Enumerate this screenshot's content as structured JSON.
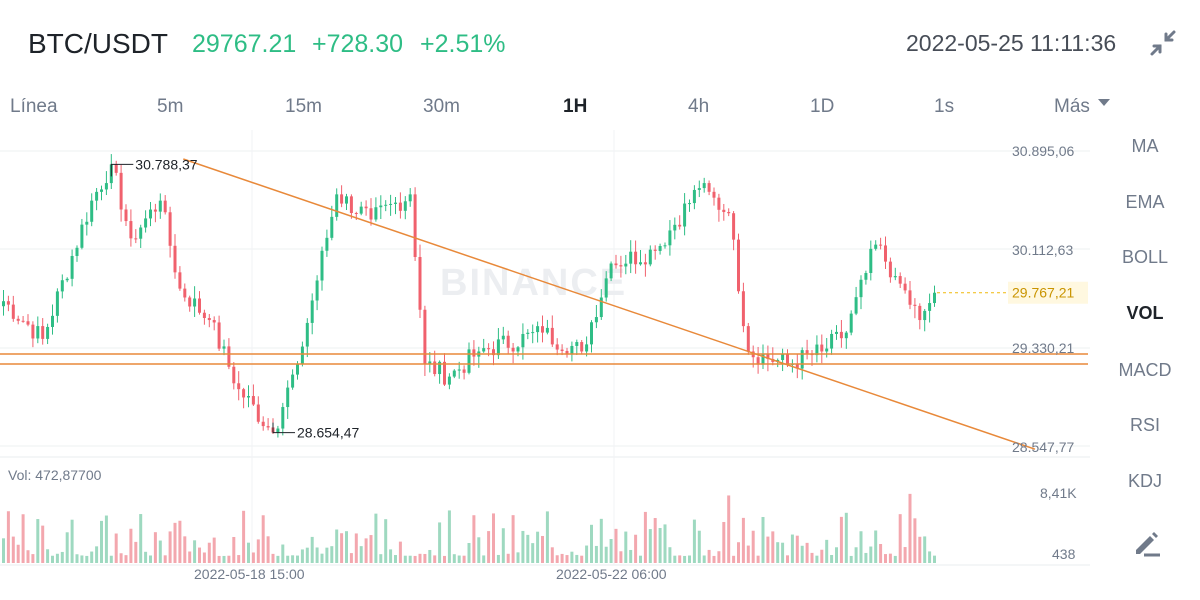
{
  "header": {
    "pair": "BTC/USDT",
    "last_price": "29767.21",
    "change": "+728.30",
    "change_pct": "+2.51%",
    "datetime": "2022-05-25 11:11:36"
  },
  "tabs": [
    {
      "label": "Línea"
    },
    {
      "label": "5m"
    },
    {
      "label": "15m"
    },
    {
      "label": "30m"
    },
    {
      "label": "1H"
    },
    {
      "label": "4h"
    },
    {
      "label": "1D"
    },
    {
      "label": "1s"
    },
    {
      "label": "Más"
    }
  ],
  "active_tab": "1H",
  "indicators": [
    {
      "label": "MA"
    },
    {
      "label": "EMA"
    },
    {
      "label": "BOLL"
    },
    {
      "label": "VOL"
    },
    {
      "label": "MACD"
    },
    {
      "label": "RSI"
    },
    {
      "label": "KDJ"
    }
  ],
  "active_indicator": "VOL",
  "icons": {
    "collapse": "collapse-arrows-icon",
    "dropdown": "caret-down-icon",
    "draw": "pencil-draw-icon"
  },
  "colors": {
    "up": "#2ebd85",
    "down": "#f0616d",
    "trendline": "#e8893a",
    "price_label": "#c99400",
    "text": "#1e2329",
    "muted": "#707a8a"
  },
  "watermark": "BINANCE",
  "chart_data": {
    "type": "candlestick",
    "interval": "1H",
    "price_axis_labels": [
      "30.895,06",
      "30.112,63",
      "29.330,21",
      "28.547,77"
    ],
    "ylim": [
      28547.77,
      30895.06
    ],
    "current_price_label": "29.767,21",
    "high_annotation": "30.788,37",
    "low_annotation": "28.654,47",
    "x_tick_labels": [
      "2022-05-18 15:00",
      "2022-05-22 06:00"
    ],
    "volume": {
      "label": "Vol: 472,87700",
      "axis_labels": [
        "8,41K",
        "438"
      ],
      "ylim": [
        438,
        8410
      ]
    },
    "trendlines": [
      {
        "kind": "descending",
        "from": {
          "index": 0.31,
          "price": 30895.06
        },
        "to": {
          "index": 1.78,
          "price": 29000
        }
      },
      {
        "kind": "horizontal",
        "price": 29280
      },
      {
        "kind": "horizontal",
        "price": 29200
      }
    ],
    "keypoints": [
      {
        "i": 0,
        "p": 29700
      },
      {
        "i": 8,
        "p": 29400
      },
      {
        "i": 18,
        "p": 30500
      },
      {
        "i": 22,
        "p": 30788.37
      },
      {
        "i": 26,
        "p": 30200
      },
      {
        "i": 32,
        "p": 30500
      },
      {
        "i": 36,
        "p": 29800
      },
      {
        "i": 42,
        "p": 29550
      },
      {
        "i": 48,
        "p": 29000
      },
      {
        "i": 55,
        "p": 28654.47
      },
      {
        "i": 60,
        "p": 29200
      },
      {
        "i": 68,
        "p": 30550
      },
      {
        "i": 75,
        "p": 30350
      },
      {
        "i": 83,
        "p": 30550
      },
      {
        "i": 86,
        "p": 29200
      },
      {
        "i": 91,
        "p": 29100
      },
      {
        "i": 97,
        "p": 29300
      },
      {
        "i": 110,
        "p": 29450
      },
      {
        "i": 118,
        "p": 29300
      },
      {
        "i": 124,
        "p": 30000
      },
      {
        "i": 133,
        "p": 30100
      },
      {
        "i": 142,
        "p": 30600
      },
      {
        "i": 148,
        "p": 30400
      },
      {
        "i": 152,
        "p": 29300
      },
      {
        "i": 160,
        "p": 29200
      },
      {
        "i": 167,
        "p": 29300
      },
      {
        "i": 172,
        "p": 29450
      },
      {
        "i": 178,
        "p": 30150
      },
      {
        "i": 182,
        "p": 29900
      },
      {
        "i": 187,
        "p": 29550
      },
      {
        "i": 190,
        "p": 29767.21
      }
    ]
  }
}
